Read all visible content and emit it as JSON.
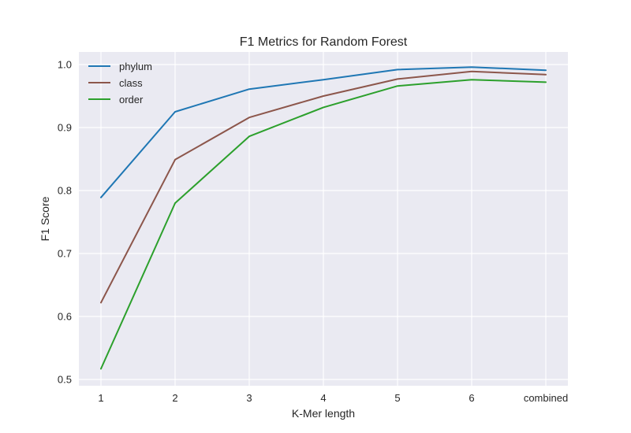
{
  "chart_data": {
    "type": "line",
    "title": "F1 Metrics for Random Forest",
    "xlabel": "K-Mer length",
    "ylabel": "F1 Score",
    "categories": [
      "1",
      "2",
      "3",
      "4",
      "5",
      "6",
      "combined"
    ],
    "ylim": [
      0.49,
      1.02
    ],
    "yticks": [
      "0.5",
      "0.6",
      "0.7",
      "0.8",
      "0.9",
      "1.0"
    ],
    "grid": true,
    "legend_position": "upper-left",
    "series": [
      {
        "name": "phylum",
        "color": "#1f77b4",
        "values": [
          0.789,
          0.925,
          0.961,
          0.976,
          0.992,
          0.996,
          0.991
        ]
      },
      {
        "name": "class",
        "color": "#8c564b",
        "values": [
          0.622,
          0.849,
          0.916,
          0.95,
          0.977,
          0.989,
          0.984
        ]
      },
      {
        "name": "order",
        "color": "#2ca02c",
        "values": [
          0.517,
          0.78,
          0.886,
          0.932,
          0.966,
          0.976,
          0.972
        ]
      }
    ]
  }
}
